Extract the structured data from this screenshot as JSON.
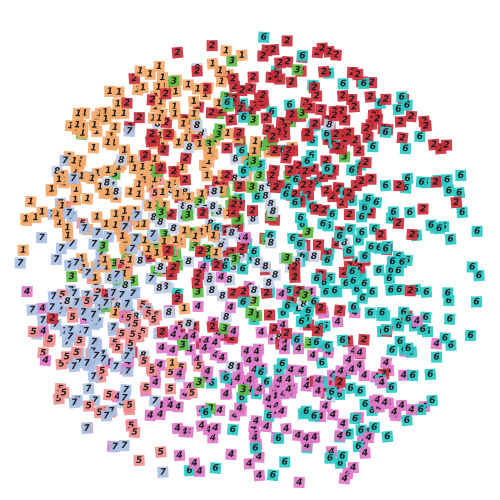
{
  "chart_data": {
    "type": "scatter",
    "title": "",
    "xlabel": "",
    "ylabel": "",
    "grid": false,
    "legend": "none",
    "marker": "digit-thumbnail-square",
    "colors": {
      "digit_1": "#f4a86a",
      "digit_2": "#cc2f3c",
      "digit_3": "#5bbd45",
      "digit_4": "#e07ac8",
      "digit_5": "#f28f8f",
      "digit_6": "#29c9c4",
      "digit_7": "#a9bfe4",
      "digit_8": "#c3cfe6"
    },
    "series": [
      {
        "digit": "1",
        "color": "#f4a86a",
        "center": [
          0.265,
          0.3
        ],
        "spread": [
          0.13,
          0.13
        ],
        "count": 210,
        "angle": -0.45
      },
      {
        "digit": "2",
        "color": "#cc2f3c",
        "center": [
          0.62,
          0.23
        ],
        "spread": [
          0.17,
          0.14
        ],
        "count": 170,
        "angle": 0.15
      },
      {
        "digit": "2",
        "color": "#cc2f3c",
        "center": [
          0.55,
          0.52
        ],
        "spread": [
          0.17,
          0.16
        ],
        "count": 90,
        "angle": 0.0
      },
      {
        "digit": "3",
        "color": "#5bbd45",
        "center": [
          0.44,
          0.43
        ],
        "spread": [
          0.13,
          0.15
        ],
        "count": 75,
        "angle": 0.0
      },
      {
        "digit": "4",
        "color": "#e07ac8",
        "center": [
          0.5,
          0.78
        ],
        "spread": [
          0.18,
          0.11
        ],
        "count": 190,
        "angle": 0.05
      },
      {
        "digit": "5",
        "color": "#f28f8f",
        "center": [
          0.22,
          0.68
        ],
        "spread": [
          0.09,
          0.14
        ],
        "count": 70,
        "angle": 0.0
      },
      {
        "digit": "6",
        "color": "#29c9c4",
        "center": [
          0.74,
          0.54
        ],
        "spread": [
          0.16,
          0.22
        ],
        "count": 240,
        "angle": 0.0
      },
      {
        "digit": "7",
        "color": "#a9bfe4",
        "center": [
          0.17,
          0.63
        ],
        "spread": [
          0.08,
          0.14
        ],
        "count": 110,
        "angle": 0.0
      },
      {
        "digit": "8",
        "color": "#c3cfe6",
        "center": [
          0.42,
          0.49
        ],
        "spread": [
          0.13,
          0.13
        ],
        "count": 110,
        "angle": 0.0
      }
    ]
  }
}
